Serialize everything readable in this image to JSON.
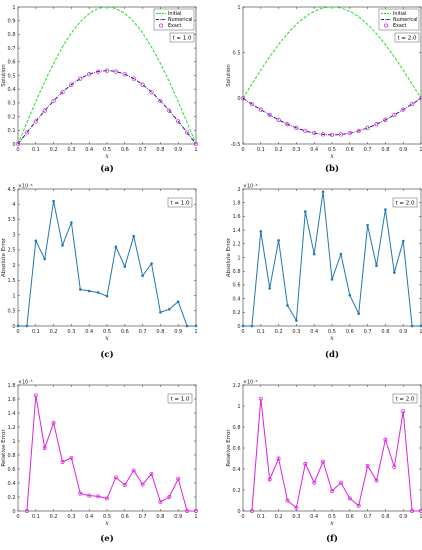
{
  "chart_data": [
    {
      "panel": "a",
      "type": "line",
      "caption": "(a)",
      "time_label": "t = 1.0",
      "ylabel": "Solution",
      "xlabel": "x",
      "xlim": [
        0,
        1
      ],
      "ylim": [
        0,
        1
      ],
      "xticks": [
        "0",
        "0.1",
        "0.2",
        "0.3",
        "0.4",
        "0.5",
        "0.6",
        "0.7",
        "0.8",
        "0.9",
        "1"
      ],
      "yticks": [
        "0",
        "0.1",
        "0.2",
        "0.3",
        "0.4",
        "0.5",
        "0.6",
        "0.7",
        "0.8",
        "0.9",
        "1"
      ],
      "ytick_values": [
        0,
        0.1,
        0.2,
        0.3,
        0.4,
        0.5,
        0.6,
        0.7,
        0.8,
        0.9,
        1
      ],
      "legend_position": "top-right",
      "legend": [
        "Initial",
        "Numerical",
        "Exact"
      ],
      "series": [
        {
          "name": "Initial",
          "style": "dashed",
          "color": "#22dd22",
          "function": "sin(pi x)"
        },
        {
          "name": "Numerical",
          "style": "dashdot",
          "color": "#22228a",
          "function": "0.535 sin(pi x)"
        },
        {
          "name": "Exact",
          "style": "circles",
          "color": "#dd22dd",
          "x": [
            0,
            0.05,
            0.1,
            0.15,
            0.2,
            0.25,
            0.3,
            0.35,
            0.4,
            0.45,
            0.5,
            0.55,
            0.6,
            0.65,
            0.7,
            0.75,
            0.8,
            0.85,
            0.9,
            0.95,
            1
          ],
          "y": [
            0,
            0.084,
            0.165,
            0.243,
            0.314,
            0.378,
            0.433,
            0.477,
            0.509,
            0.528,
            0.535,
            0.528,
            0.509,
            0.477,
            0.433,
            0.378,
            0.314,
            0.243,
            0.165,
            0.084,
            0
          ]
        }
      ]
    },
    {
      "panel": "b",
      "type": "line",
      "caption": "(b)",
      "time_label": "t = 2.0",
      "ylabel": "Solution",
      "xlabel": "x",
      "xlim": [
        0,
        1
      ],
      "ylim": [
        -0.5,
        1
      ],
      "xticks": [
        "0",
        "0.1",
        "0.2",
        "0.3",
        "0.4",
        "0.5",
        "0.6",
        "0.7",
        "0.8",
        "0.9",
        "1"
      ],
      "yticks": [
        "-0.5",
        "0",
        "0.5",
        "1"
      ],
      "ytick_values": [
        -0.5,
        0,
        0.5,
        1
      ],
      "legend_position": "top-right",
      "legend": [
        "Initial",
        "Numerical",
        "Exact"
      ],
      "series": [
        {
          "name": "Initial",
          "style": "dashed",
          "color": "#22dd22",
          "function": "sin(pi x)"
        },
        {
          "name": "Numerical",
          "style": "dashdot",
          "color": "#22228a",
          "function": "-0.4 sin(pi x)"
        },
        {
          "name": "Exact",
          "style": "circles",
          "color": "#dd22dd",
          "x": [
            0,
            0.05,
            0.1,
            0.15,
            0.2,
            0.25,
            0.3,
            0.35,
            0.4,
            0.45,
            0.5,
            0.55,
            0.6,
            0.65,
            0.7,
            0.75,
            0.8,
            0.85,
            0.9,
            0.95,
            1
          ],
          "y": [
            0,
            -0.063,
            -0.124,
            -0.182,
            -0.235,
            -0.283,
            -0.324,
            -0.356,
            -0.38,
            -0.395,
            -0.4,
            -0.395,
            -0.38,
            -0.356,
            -0.324,
            -0.283,
            -0.235,
            -0.182,
            -0.124,
            -0.063,
            0
          ]
        }
      ]
    },
    {
      "panel": "c",
      "type": "line",
      "caption": "(c)",
      "time_label": "t = 1.0",
      "ylabel": "Absolute Error",
      "xlabel": "x",
      "multiplier": "×10⁻⁶",
      "xlim": [
        0,
        1
      ],
      "ylim": [
        0,
        4.5
      ],
      "xticks": [
        "0",
        "0.1",
        "0.2",
        "0.3",
        "0.4",
        "0.5",
        "0.6",
        "0.7",
        "0.8",
        "0.9",
        "1"
      ],
      "yticks": [
        "0",
        "0.5",
        "1",
        "1.5",
        "2",
        "2.5",
        "3",
        "3.5",
        "4",
        "4.5"
      ],
      "ytick_values": [
        0,
        0.5,
        1,
        1.5,
        2,
        2.5,
        3,
        3.5,
        4,
        4.5
      ],
      "series": [
        {
          "name": "",
          "style": "marker-line",
          "color": "#1f77b4",
          "x": [
            0,
            0.05,
            0.1,
            0.15,
            0.2,
            0.25,
            0.3,
            0.35,
            0.4,
            0.45,
            0.5,
            0.55,
            0.6,
            0.65,
            0.7,
            0.75,
            0.8,
            0.85,
            0.9,
            0.95,
            1
          ],
          "y": [
            0,
            0,
            2.8,
            2.2,
            4.1,
            2.65,
            3.4,
            1.2,
            1.15,
            1.1,
            0.98,
            2.6,
            1.95,
            2.95,
            1.65,
            2.05,
            0.45,
            0.55,
            0.8,
            0,
            0
          ]
        }
      ]
    },
    {
      "panel": "d",
      "type": "line",
      "caption": "(d)",
      "time_label": "t = 2.0",
      "ylabel": "Absolute Error",
      "xlabel": "x",
      "multiplier": "×10⁻⁶",
      "xlim": [
        0,
        1
      ],
      "ylim": [
        0,
        2
      ],
      "xticks": [
        "0",
        "0.1",
        "0.2",
        "0.3",
        "0.4",
        "0.5",
        "0.6",
        "0.7",
        "0.8",
        "0.9",
        "1"
      ],
      "yticks": [
        "0",
        "0.2",
        "0.4",
        "0.6",
        "0.8",
        "1",
        "1.2",
        "1.4",
        "1.6",
        "1.8",
        "2"
      ],
      "ytick_values": [
        0,
        0.2,
        0.4,
        0.6,
        0.8,
        1,
        1.2,
        1.4,
        1.6,
        1.8,
        2
      ],
      "series": [
        {
          "name": "",
          "style": "marker-line",
          "color": "#1f77b4",
          "x": [
            0,
            0.05,
            0.1,
            0.15,
            0.2,
            0.25,
            0.3,
            0.35,
            0.4,
            0.45,
            0.5,
            0.55,
            0.6,
            0.65,
            0.7,
            0.75,
            0.8,
            0.85,
            0.9,
            0.95,
            1
          ],
          "y": [
            0,
            0,
            1.38,
            0.55,
            1.25,
            0.3,
            0.08,
            1.67,
            1.05,
            1.96,
            0.68,
            1.05,
            0.45,
            0.18,
            1.47,
            0.88,
            1.7,
            0.78,
            1.24,
            0,
            0
          ]
        }
      ]
    },
    {
      "panel": "e",
      "type": "line",
      "caption": "(e)",
      "time_label": "t = 1.0",
      "ylabel": "Relative Error",
      "xlabel": "x",
      "multiplier": "×10⁻⁵",
      "xlim": [
        0,
        1
      ],
      "ylim": [
        0,
        1.8
      ],
      "xticks": [
        "0",
        "0.1",
        "0.2",
        "0.3",
        "0.4",
        "0.5",
        "0.6",
        "0.7",
        "0.8",
        "0.9",
        "1"
      ],
      "yticks": [
        "0",
        "0.2",
        "0.4",
        "0.6",
        "0.8",
        "1",
        "1.2",
        "1.4",
        "1.6",
        "1.8"
      ],
      "ytick_values": [
        0,
        0.2,
        0.4,
        0.6,
        0.8,
        1,
        1.2,
        1.4,
        1.6,
        1.8
      ],
      "series": [
        {
          "name": "",
          "style": "circle-line",
          "color": "#dd22dd",
          "x": [
            0.05,
            0.1,
            0.15,
            0.2,
            0.25,
            0.3,
            0.35,
            0.4,
            0.45,
            0.5,
            0.55,
            0.6,
            0.65,
            0.7,
            0.75,
            0.8,
            0.85,
            0.9,
            0.95,
            1
          ],
          "y": [
            0,
            1.65,
            0.9,
            1.26,
            0.7,
            0.76,
            0.25,
            0.22,
            0.21,
            0.18,
            0.48,
            0.37,
            0.58,
            0.38,
            0.53,
            0.13,
            0.2,
            0.46,
            0,
            0
          ]
        }
      ]
    },
    {
      "panel": "f",
      "type": "line",
      "caption": "(f)",
      "time_label": "t = 2.0",
      "ylabel": "Relative Error",
      "xlabel": "x",
      "multiplier": "×10⁻⁵",
      "xlim": [
        0,
        1
      ],
      "ylim": [
        0,
        1.2
      ],
      "xticks": [
        "0",
        "0.1",
        "0.2",
        "0.3",
        "0.4",
        "0.5",
        "0.6",
        "0.7",
        "0.8",
        "0.9",
        "1"
      ],
      "yticks": [
        "0",
        "0.2",
        "0.4",
        "0.6",
        "0.8",
        "1",
        "1.2"
      ],
      "ytick_values": [
        0,
        0.2,
        0.4,
        0.6,
        0.8,
        1,
        1.2
      ],
      "series": [
        {
          "name": "",
          "style": "circle-line",
          "color": "#dd22dd",
          "x": [
            0.05,
            0.1,
            0.15,
            0.2,
            0.25,
            0.3,
            0.35,
            0.4,
            0.45,
            0.5,
            0.55,
            0.6,
            0.65,
            0.7,
            0.75,
            0.8,
            0.85,
            0.9,
            0.95,
            1
          ],
          "y": [
            0,
            1.07,
            0.3,
            0.5,
            0.1,
            0.03,
            0.45,
            0.27,
            0.47,
            0.19,
            0.27,
            0.12,
            0.05,
            0.43,
            0.29,
            0.68,
            0.42,
            0.95,
            0,
            0
          ]
        }
      ]
    }
  ]
}
